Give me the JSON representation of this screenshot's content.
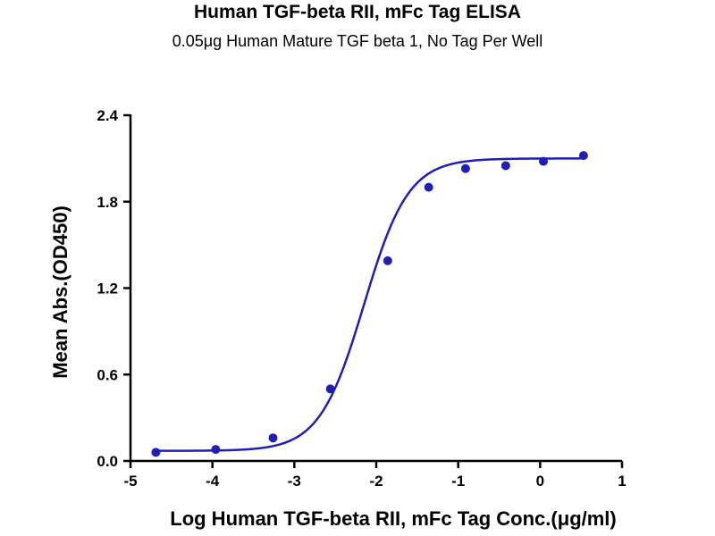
{
  "chart_data": {
    "type": "scatter",
    "title": "Human TGF-beta RII, mFc Tag ELISA",
    "subtitle": "0.05μg Human Mature TGF beta 1, No Tag Per Well",
    "xlabel": "Log Human TGF-beta RII, mFc Tag Conc.(μg/ml)",
    "ylabel": "Mean Abs.(OD450)",
    "xlim": [
      -5,
      1
    ],
    "ylim": [
      0,
      2.4
    ],
    "x_ticks": [
      "-5",
      "-4",
      "-3",
      "-2",
      "-1",
      "0",
      "1"
    ],
    "y_ticks": [
      "0.0",
      "0.6",
      "1.2",
      "1.8",
      "2.4"
    ],
    "series": [
      {
        "color": "#1f1fb4",
        "x": [
          -4.69,
          -3.96,
          -3.26,
          -2.56,
          -1.86,
          -1.36,
          -0.91,
          -0.42,
          0.04,
          0.53
        ],
        "y": [
          0.06,
          0.08,
          0.16,
          0.5,
          1.39,
          1.9,
          2.03,
          2.05,
          2.08,
          2.12
        ]
      }
    ],
    "fit_curve": {
      "model": "4PL",
      "bottom": 0.07,
      "top": 2.1,
      "logEC50": -2.15,
      "hill": 1.6
    },
    "grid": false
  }
}
